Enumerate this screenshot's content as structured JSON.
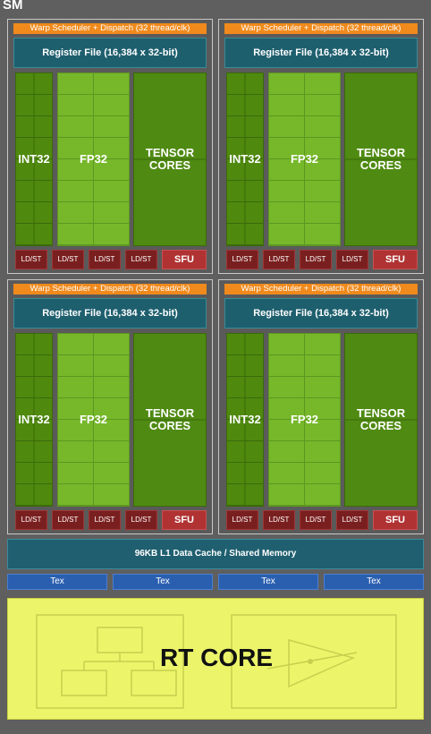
{
  "sm_label": "SM",
  "warp_scheduler": "Warp Scheduler + Dispatch (32 thread/clk)",
  "register_file": "Register File (16,384 x 32-bit)",
  "int32": "INT32",
  "fp32": "FP32",
  "tensor": "TENSOR CORES",
  "ldst": "LD/ST",
  "sfu": "SFU",
  "l1_cache": "96KB L1 Data Cache / Shared Memory",
  "tex": [
    "Tex",
    "Tex",
    "Tex",
    "Tex"
  ],
  "rt_core": "RT CORE",
  "colors": {
    "warp": "#f08a1c",
    "register_file": "#1e5f6e",
    "int32": "#4f8a0f",
    "fp32": "#76b82a",
    "tensor": "#4f8a12",
    "ldst": "#7a1f1f",
    "sfu": "#b03232",
    "tex": "#2a5fb0",
    "rt_core": "#ecf56a"
  }
}
